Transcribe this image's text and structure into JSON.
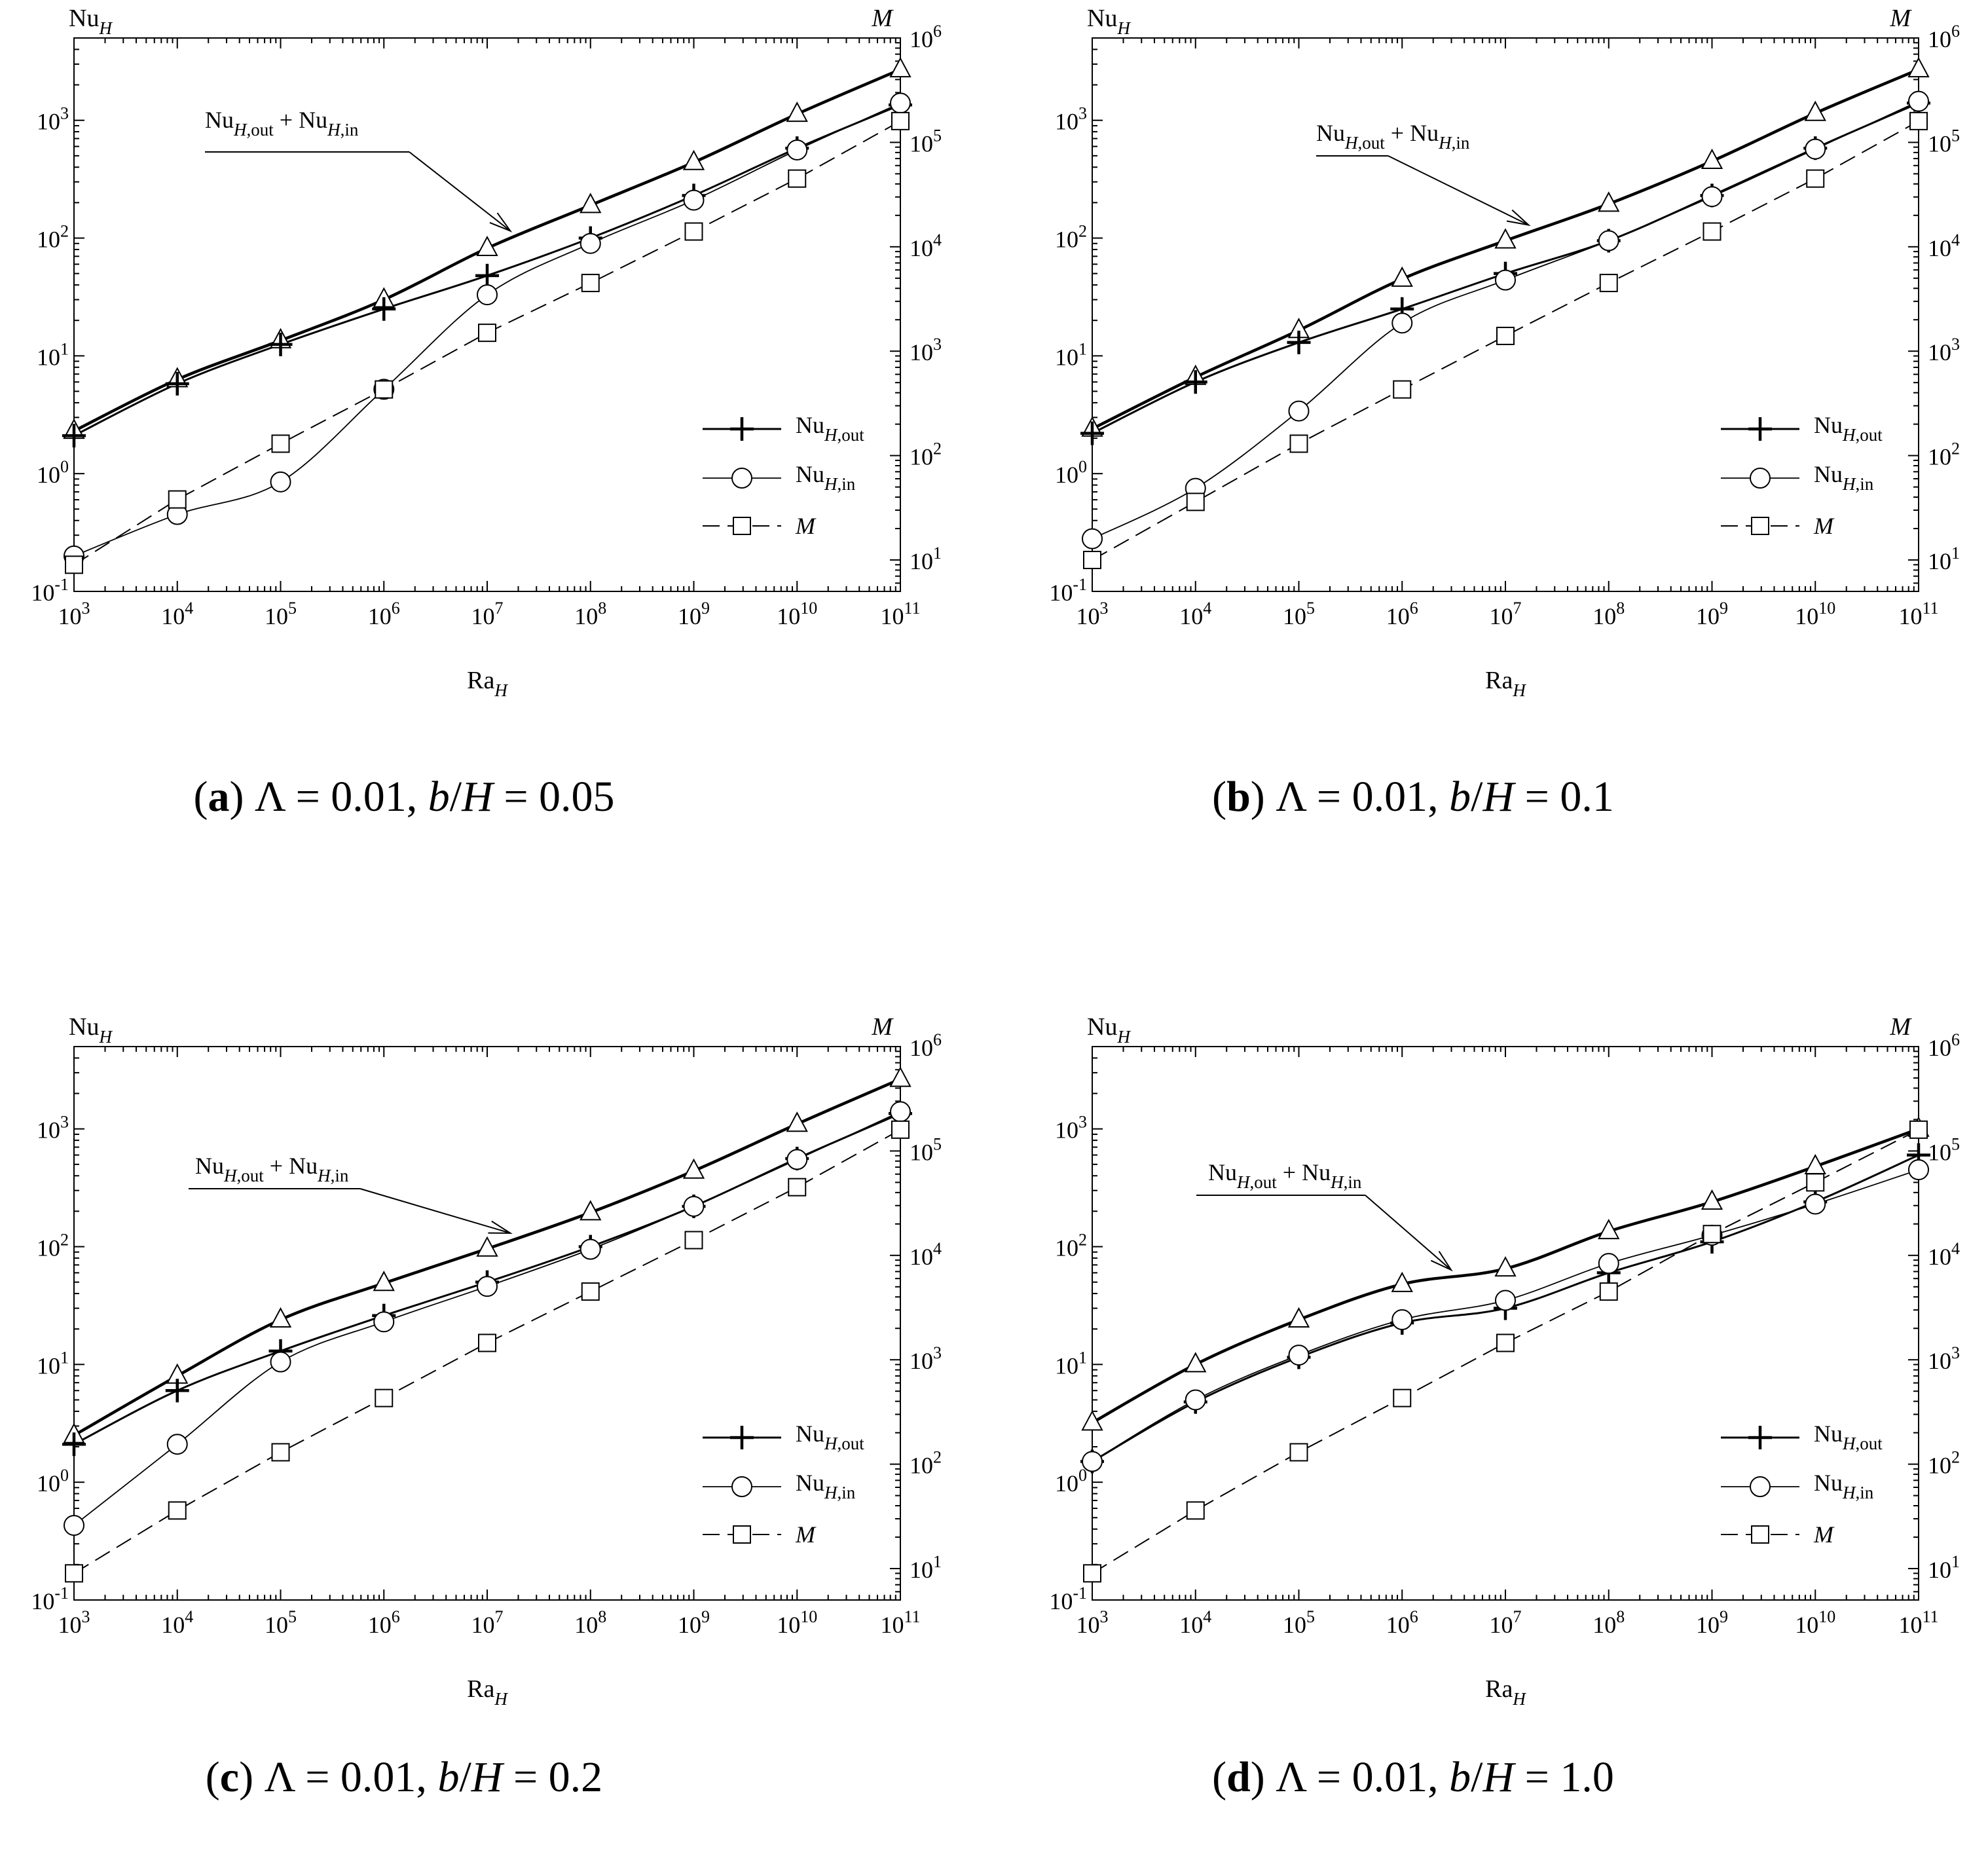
{
  "figure": {
    "panels": [
      {
        "id": "a",
        "caption": {
          "letter": "(a)",
          "text": "Λ = 0.01, b/H = 0.05"
        }
      },
      {
        "id": "b",
        "caption": {
          "letter": "(b)",
          "text": "Λ = 0.01, b/H = 0.1"
        }
      },
      {
        "id": "c",
        "caption": {
          "letter": "(c)",
          "text": "Λ = 0.01, b/H = 0.2"
        }
      },
      {
        "id": "d",
        "caption": {
          "letter": "(d)",
          "text": "Λ = 0.01, b/H = 1.0"
        }
      }
    ],
    "left_axis_label": "NuH",
    "right_axis_label": "M",
    "x_axis_label": "RaH",
    "annotation": "NuH,out + NuH,in",
    "legend": [
      "NuH,out",
      "NuH,in",
      "M"
    ]
  },
  "chart_data": [
    {
      "type": "line",
      "panel": "a",
      "title": "(a) Λ = 0.01, b/H = 0.05",
      "xlabel": "RaH",
      "ylabel": "NuH",
      "y2label": "M",
      "xscale": "log",
      "yscale": "log",
      "y2scale": "log",
      "xlim": [
        1000.0,
        100000000000.0
      ],
      "ylim": [
        0.1,
        5000
      ],
      "y2lim": [
        5,
        1000000.0
      ],
      "x": [
        1000.0,
        10000.0,
        100000.0,
        1000000.0,
        10000000.0,
        100000000.0,
        1000000000.0,
        10000000000.0,
        100000000000.0
      ],
      "series": [
        {
          "name": "NuH,out + NuH,in",
          "axis": "left",
          "marker": "triangle",
          "values": [
            2.3,
            6.3,
            13.5,
            30,
            82,
            190,
            440,
            1130,
            2700
          ]
        },
        {
          "name": "NuH,out",
          "axis": "left",
          "marker": "plus",
          "values": [
            2.1,
            5.8,
            12.5,
            25,
            48,
            100,
            230,
            580,
            1350
          ]
        },
        {
          "name": "NuH,in",
          "axis": "left",
          "marker": "circle",
          "values": [
            0.2,
            0.45,
            0.85,
            5.2,
            33,
            90,
            210,
            560,
            1400
          ]
        },
        {
          "name": "M",
          "axis": "right",
          "marker": "square",
          "values": [
            9,
            38,
            130,
            430,
            1500,
            4500,
            14000,
            45000,
            160000
          ]
        }
      ],
      "legend_position": "lower-right"
    },
    {
      "type": "line",
      "panel": "b",
      "title": "(b) Λ = 0.01, b/H = 0.1",
      "xlabel": "RaH",
      "ylabel": "NuH",
      "y2label": "M",
      "xscale": "log",
      "yscale": "log",
      "y2scale": "log",
      "xlim": [
        1000.0,
        100000000000.0
      ],
      "ylim": [
        0.1,
        5000
      ],
      "y2lim": [
        5,
        1000000.0
      ],
      "x": [
        1000.0,
        10000.0,
        100000.0,
        1000000.0,
        10000000.0,
        100000000.0,
        1000000000.0,
        10000000000.0,
        100000000000.0
      ],
      "series": [
        {
          "name": "NuH,out + NuH,in",
          "axis": "left",
          "marker": "triangle",
          "values": [
            2.4,
            6.6,
            16.5,
            45,
            95,
            195,
            450,
            1150,
            2700
          ]
        },
        {
          "name": "NuH,out",
          "axis": "left",
          "marker": "plus",
          "values": [
            2.2,
            6.0,
            13,
            25,
            50,
            95,
            230,
            580,
            1400
          ]
        },
        {
          "name": "NuH,in",
          "axis": "left",
          "marker": "circle",
          "values": [
            0.28,
            0.75,
            3.4,
            19,
            44,
            95,
            225,
            570,
            1450
          ]
        },
        {
          "name": "M",
          "axis": "right",
          "marker": "square",
          "values": [
            10,
            36,
            130,
            430,
            1400,
            4500,
            14000,
            45000,
            160000
          ]
        }
      ],
      "legend_position": "lower-right"
    },
    {
      "type": "line",
      "panel": "c",
      "title": "(c) Λ = 0.01, b/H = 0.2",
      "xlabel": "RaH",
      "ylabel": "NuH",
      "y2label": "M",
      "xscale": "log",
      "yscale": "log",
      "y2scale": "log",
      "xlim": [
        1000.0,
        100000000000.0
      ],
      "ylim": [
        0.1,
        5000
      ],
      "y2lim": [
        5,
        1000000.0
      ],
      "x": [
        1000.0,
        10000.0,
        100000.0,
        1000000.0,
        10000000.0,
        100000000.0,
        1000000000.0,
        10000000000.0,
        100000000000.0
      ],
      "series": [
        {
          "name": "NuH,out + NuH,in",
          "axis": "left",
          "marker": "triangle",
          "values": [
            2.5,
            8.0,
            24,
            49,
            96,
            195,
            440,
            1100,
            2650
          ]
        },
        {
          "name": "NuH,out",
          "axis": "left",
          "marker": "plus",
          "values": [
            2.1,
            6.0,
            13,
            26,
            50,
            100,
            220,
            560,
            1350
          ]
        },
        {
          "name": "NuH,in",
          "axis": "left",
          "marker": "circle",
          "values": [
            0.43,
            2.1,
            10.5,
            23,
            46,
            95,
            220,
            550,
            1400
          ]
        },
        {
          "name": "M",
          "axis": "right",
          "marker": "square",
          "values": [
            9,
            36,
            130,
            430,
            1450,
            4500,
            14000,
            45000,
            160000
          ]
        }
      ],
      "legend_position": "lower-right"
    },
    {
      "type": "line",
      "panel": "d",
      "title": "(d) Λ = 0.01, b/H = 1.0",
      "xlabel": "RaH",
      "ylabel": "NuH",
      "y2label": "M",
      "xscale": "log",
      "yscale": "log",
      "y2scale": "log",
      "xlim": [
        1000.0,
        100000000000.0
      ],
      "ylim": [
        0.1,
        5000
      ],
      "y2lim": [
        5,
        1000000.0
      ],
      "x": [
        1000.0,
        10000.0,
        100000.0,
        1000000.0,
        10000000.0,
        100000000.0,
        1000000000.0,
        10000000000.0,
        100000000000.0
      ],
      "series": [
        {
          "name": "NuH,out + NuH,in",
          "axis": "left",
          "marker": "triangle",
          "values": [
            3.2,
            10,
            24,
            48,
            65,
            135,
            240,
            480,
            1000
          ]
        },
        {
          "name": "NuH,out",
          "axis": "left",
          "marker": "plus",
          "values": [
            1.5,
            4.8,
            11.5,
            22.5,
            30,
            60,
            110,
            240,
            600
          ]
        },
        {
          "name": "NuH,in",
          "axis": "left",
          "marker": "circle",
          "values": [
            1.5,
            5.0,
            12,
            24,
            35,
            72,
            125,
            230,
            450
          ]
        },
        {
          "name": "M",
          "axis": "right",
          "marker": "square",
          "values": [
            9,
            36,
            130,
            430,
            1450,
            4500,
            16000,
            50000,
            160000
          ]
        }
      ],
      "legend_position": "lower-right"
    }
  ]
}
